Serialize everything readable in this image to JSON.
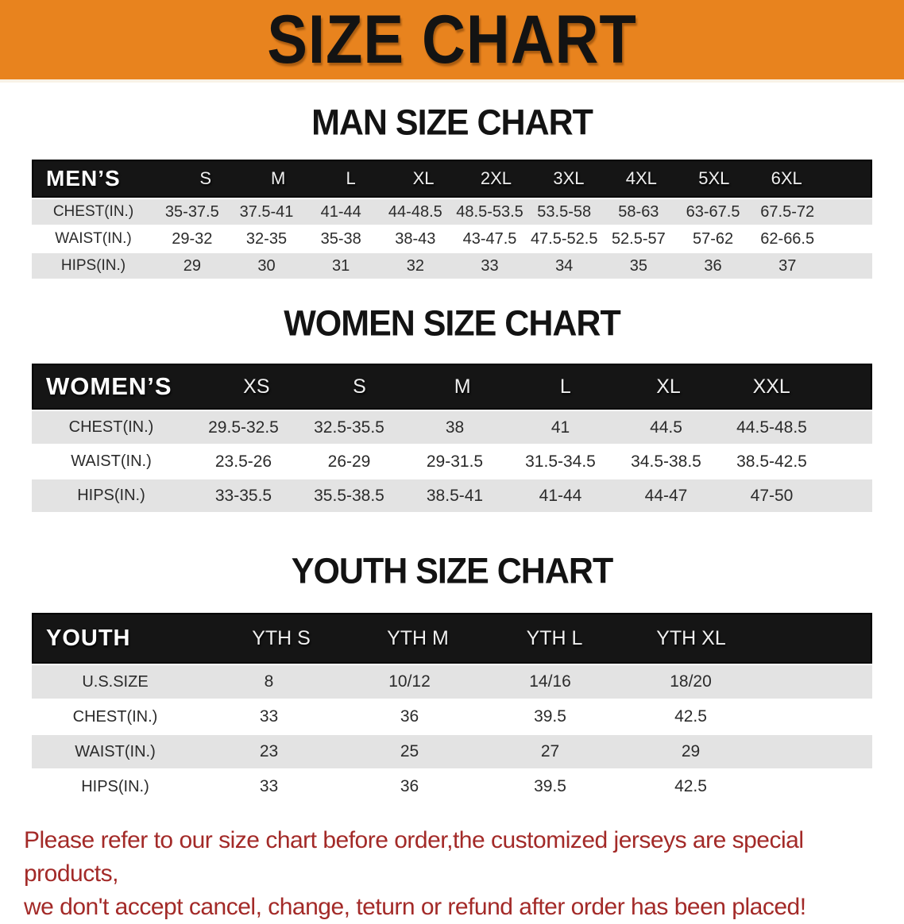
{
  "banner": {
    "title": "SIZE CHART",
    "background": "#E8831E"
  },
  "colors": {
    "header_band": "#151515",
    "row_gray": "#e3e3e3",
    "footer_red": "#A32A28"
  },
  "sections": [
    {
      "heading": "MAN SIZE CHART",
      "header_label": "MEN’S",
      "columns": [
        "S",
        "M",
        "L",
        "XL",
        "2XL",
        "3XL",
        "4XL",
        "5XL",
        "6XL"
      ],
      "rows": [
        {
          "label": "CHEST(IN.)",
          "values": [
            "35-37.5",
            "37.5-41",
            "41-44",
            "44-48.5",
            "48.5-53.5",
            "53.5-58",
            "58-63",
            "63-67.5",
            "67.5-72"
          ]
        },
        {
          "label": "WAIST(IN.)",
          "values": [
            "29-32",
            "32-35",
            "35-38",
            "38-43",
            "43-47.5",
            "47.5-52.5",
            "52.5-57",
            "57-62",
            "62-66.5"
          ]
        },
        {
          "label": "HIPS(IN.)",
          "values": [
            "29",
            "30",
            "31",
            "32",
            "33",
            "34",
            "35",
            "36",
            "37"
          ]
        }
      ]
    },
    {
      "heading": "WOMEN SIZE CHART",
      "header_label": "WOMEN’S",
      "columns": [
        "XS",
        "S",
        "M",
        "L",
        "XL",
        "XXL"
      ],
      "rows": [
        {
          "label": "CHEST(IN.)",
          "values": [
            "29.5-32.5",
            "32.5-35.5",
            "38",
            "41",
            "44.5",
            "44.5-48.5"
          ]
        },
        {
          "label": "WAIST(IN.)",
          "values": [
            "23.5-26",
            "26-29",
            "29-31.5",
            "31.5-34.5",
            "34.5-38.5",
            "38.5-42.5"
          ]
        },
        {
          "label": "HIPS(IN.)",
          "values": [
            "33-35.5",
            "35.5-38.5",
            "38.5-41",
            "41-44",
            "44-47",
            "47-50"
          ]
        }
      ]
    },
    {
      "heading": "YOUTH SIZE CHART",
      "header_label": "YOUTH",
      "columns": [
        "YTH S",
        "YTH M",
        "YTH L",
        "YTH XL"
      ],
      "rows": [
        {
          "label": "U.S.SIZE",
          "values": [
            "8",
            "10/12",
            "14/16",
            "18/20"
          ]
        },
        {
          "label": "CHEST(IN.)",
          "values": [
            "33",
            "36",
            "39.5",
            "42.5"
          ]
        },
        {
          "label": "WAIST(IN.)",
          "values": [
            "23",
            "25",
            "27",
            "29"
          ]
        },
        {
          "label": "HIPS(IN.)",
          "values": [
            "33",
            "36",
            "39.5",
            "42.5"
          ]
        }
      ]
    }
  ],
  "footer": {
    "line1": "Please refer to our size chart before order,the customized jerseys are special products,",
    "line2": "we don't accept cancel, change, teturn or refund after order has been placed!"
  }
}
